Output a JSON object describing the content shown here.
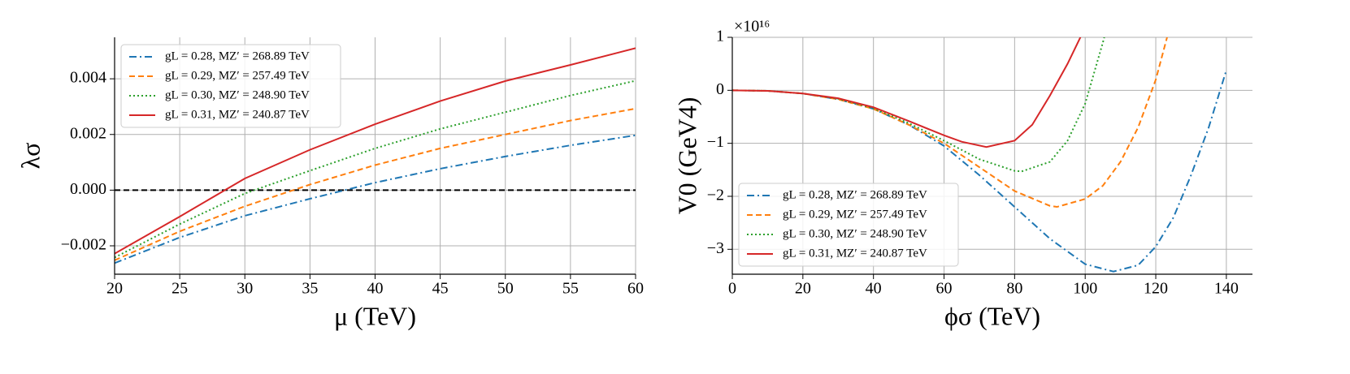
{
  "chart_data": [
    {
      "type": "line",
      "x_label": "μ (TeV)",
      "y_label": "λσ",
      "xlim": [
        20,
        60
      ],
      "ylim": [
        -0.00302,
        0.00549
      ],
      "xticks": [
        20,
        25,
        30,
        35,
        40,
        45,
        50,
        55,
        60
      ],
      "yticks": [
        {
          "value": -0.002,
          "label": "−0.002"
        },
        {
          "value": 0,
          "label": "0.000"
        },
        {
          "value": 0.002,
          "label": "0.002"
        },
        {
          "value": 0.004,
          "label": "0.004"
        }
      ],
      "grid": true,
      "legend": "upper left",
      "hline": {
        "value": 0,
        "color": "#000000",
        "style": "dashed"
      },
      "series": [
        {
          "name": "gL = 0.28, MZ′ = 268.89 TeV",
          "color": "#1f77b4",
          "style": "dashdot",
          "x": [
            20,
            25,
            30,
            35,
            40,
            45,
            50,
            55,
            60
          ],
          "values": [
            -0.00262,
            -0.0017,
            -0.00092,
            -0.00031,
            0.00027,
            0.00077,
            0.00121,
            0.00161,
            0.00197
          ]
        },
        {
          "name": "gL = 0.29, MZ′ = 257.49 TeV",
          "color": "#ff7f0e",
          "style": "dashed",
          "x": [
            20,
            25,
            30,
            35,
            40,
            45,
            50,
            55,
            60
          ],
          "values": [
            -0.00252,
            -0.00148,
            -0.00058,
            0.0002,
            0.0009,
            0.0015,
            0.002,
            0.0025,
            0.00293
          ]
        },
        {
          "name": "gL = 0.30, MZ′ = 248.90 TeV",
          "color": "#2ca02c",
          "style": "dotted",
          "x": [
            20,
            25,
            30,
            35,
            40,
            45,
            50,
            55,
            60
          ],
          "values": [
            -0.00242,
            -0.00122,
            -0.00012,
            0.0007,
            0.0015,
            0.0022,
            0.0028,
            0.0034,
            0.00393
          ]
        },
        {
          "name": "gL = 0.31, MZ′ = 240.87 TeV",
          "color": "#d62728",
          "style": "solid",
          "x": [
            20,
            25,
            30,
            35,
            40,
            45,
            50,
            55,
            60
          ],
          "values": [
            -0.00228,
            -0.00095,
            0.00042,
            0.00145,
            0.00237,
            0.0032,
            0.00392,
            0.0045,
            0.0051
          ]
        }
      ]
    },
    {
      "type": "line",
      "x_label": "ϕσ (TeV)",
      "y_label": "V0 (GeV4)",
      "y_scale_label": "×10¹⁶",
      "xlim": [
        0,
        147.4
      ],
      "ylim": [
        -3.47,
        1
      ],
      "xticks": [
        0,
        20,
        40,
        60,
        80,
        100,
        120,
        140
      ],
      "yticks": [
        {
          "value": -3,
          "label": "−3"
        },
        {
          "value": -2,
          "label": "−2"
        },
        {
          "value": -1,
          "label": "−1"
        },
        0,
        1
      ],
      "grid": true,
      "legend": "lower left",
      "series": [
        {
          "name": "gL = 0.28, MZ′ = 268.89 TeV",
          "color": "#1f77b4",
          "style": "dashdot",
          "x": [
            0,
            10,
            20,
            30,
            40,
            50,
            60,
            70,
            80,
            90,
            100,
            108,
            115,
            120,
            125,
            130,
            135,
            140
          ],
          "values": [
            0,
            -0.01,
            -0.06,
            -0.17,
            -0.35,
            -0.65,
            -1.05,
            -1.6,
            -2.2,
            -2.8,
            -3.28,
            -3.42,
            -3.3,
            -2.95,
            -2.4,
            -1.6,
            -0.7,
            0.38
          ]
        },
        {
          "name": "gL = 0.29, MZ′ = 257.49 TeV",
          "color": "#ff7f0e",
          "style": "dashed",
          "x": [
            0,
            10,
            20,
            30,
            40,
            50,
            60,
            70,
            80,
            90,
            92,
            100,
            105,
            110,
            115,
            120,
            124
          ],
          "values": [
            0,
            -0.01,
            -0.06,
            -0.17,
            -0.35,
            -0.65,
            -1.0,
            -1.45,
            -1.9,
            -2.18,
            -2.2,
            -2.05,
            -1.8,
            -1.35,
            -0.7,
            0.2,
            1.2
          ]
        },
        {
          "name": "gL = 0.30, MZ′ = 248.90 TeV",
          "color": "#2ca02c",
          "style": "dotted",
          "x": [
            0,
            10,
            20,
            30,
            40,
            50,
            60,
            70,
            80,
            82,
            90,
            95,
            100,
            105,
            106
          ],
          "values": [
            0,
            -0.01,
            -0.06,
            -0.16,
            -0.34,
            -0.62,
            -0.95,
            -1.3,
            -1.52,
            -1.53,
            -1.35,
            -0.95,
            -0.25,
            0.9,
            1.15
          ]
        },
        {
          "name": "gL = 0.31, MZ′ = 240.87 TeV",
          "color": "#d62728",
          "style": "solid",
          "x": [
            0,
            10,
            20,
            30,
            40,
            50,
            60,
            65,
            72,
            80,
            85,
            90,
            95,
            99
          ],
          "values": [
            0,
            -0.01,
            -0.06,
            -0.15,
            -0.32,
            -0.58,
            -0.85,
            -0.97,
            -1.07,
            -0.95,
            -0.65,
            -0.1,
            0.5,
            1.05
          ]
        }
      ]
    }
  ]
}
